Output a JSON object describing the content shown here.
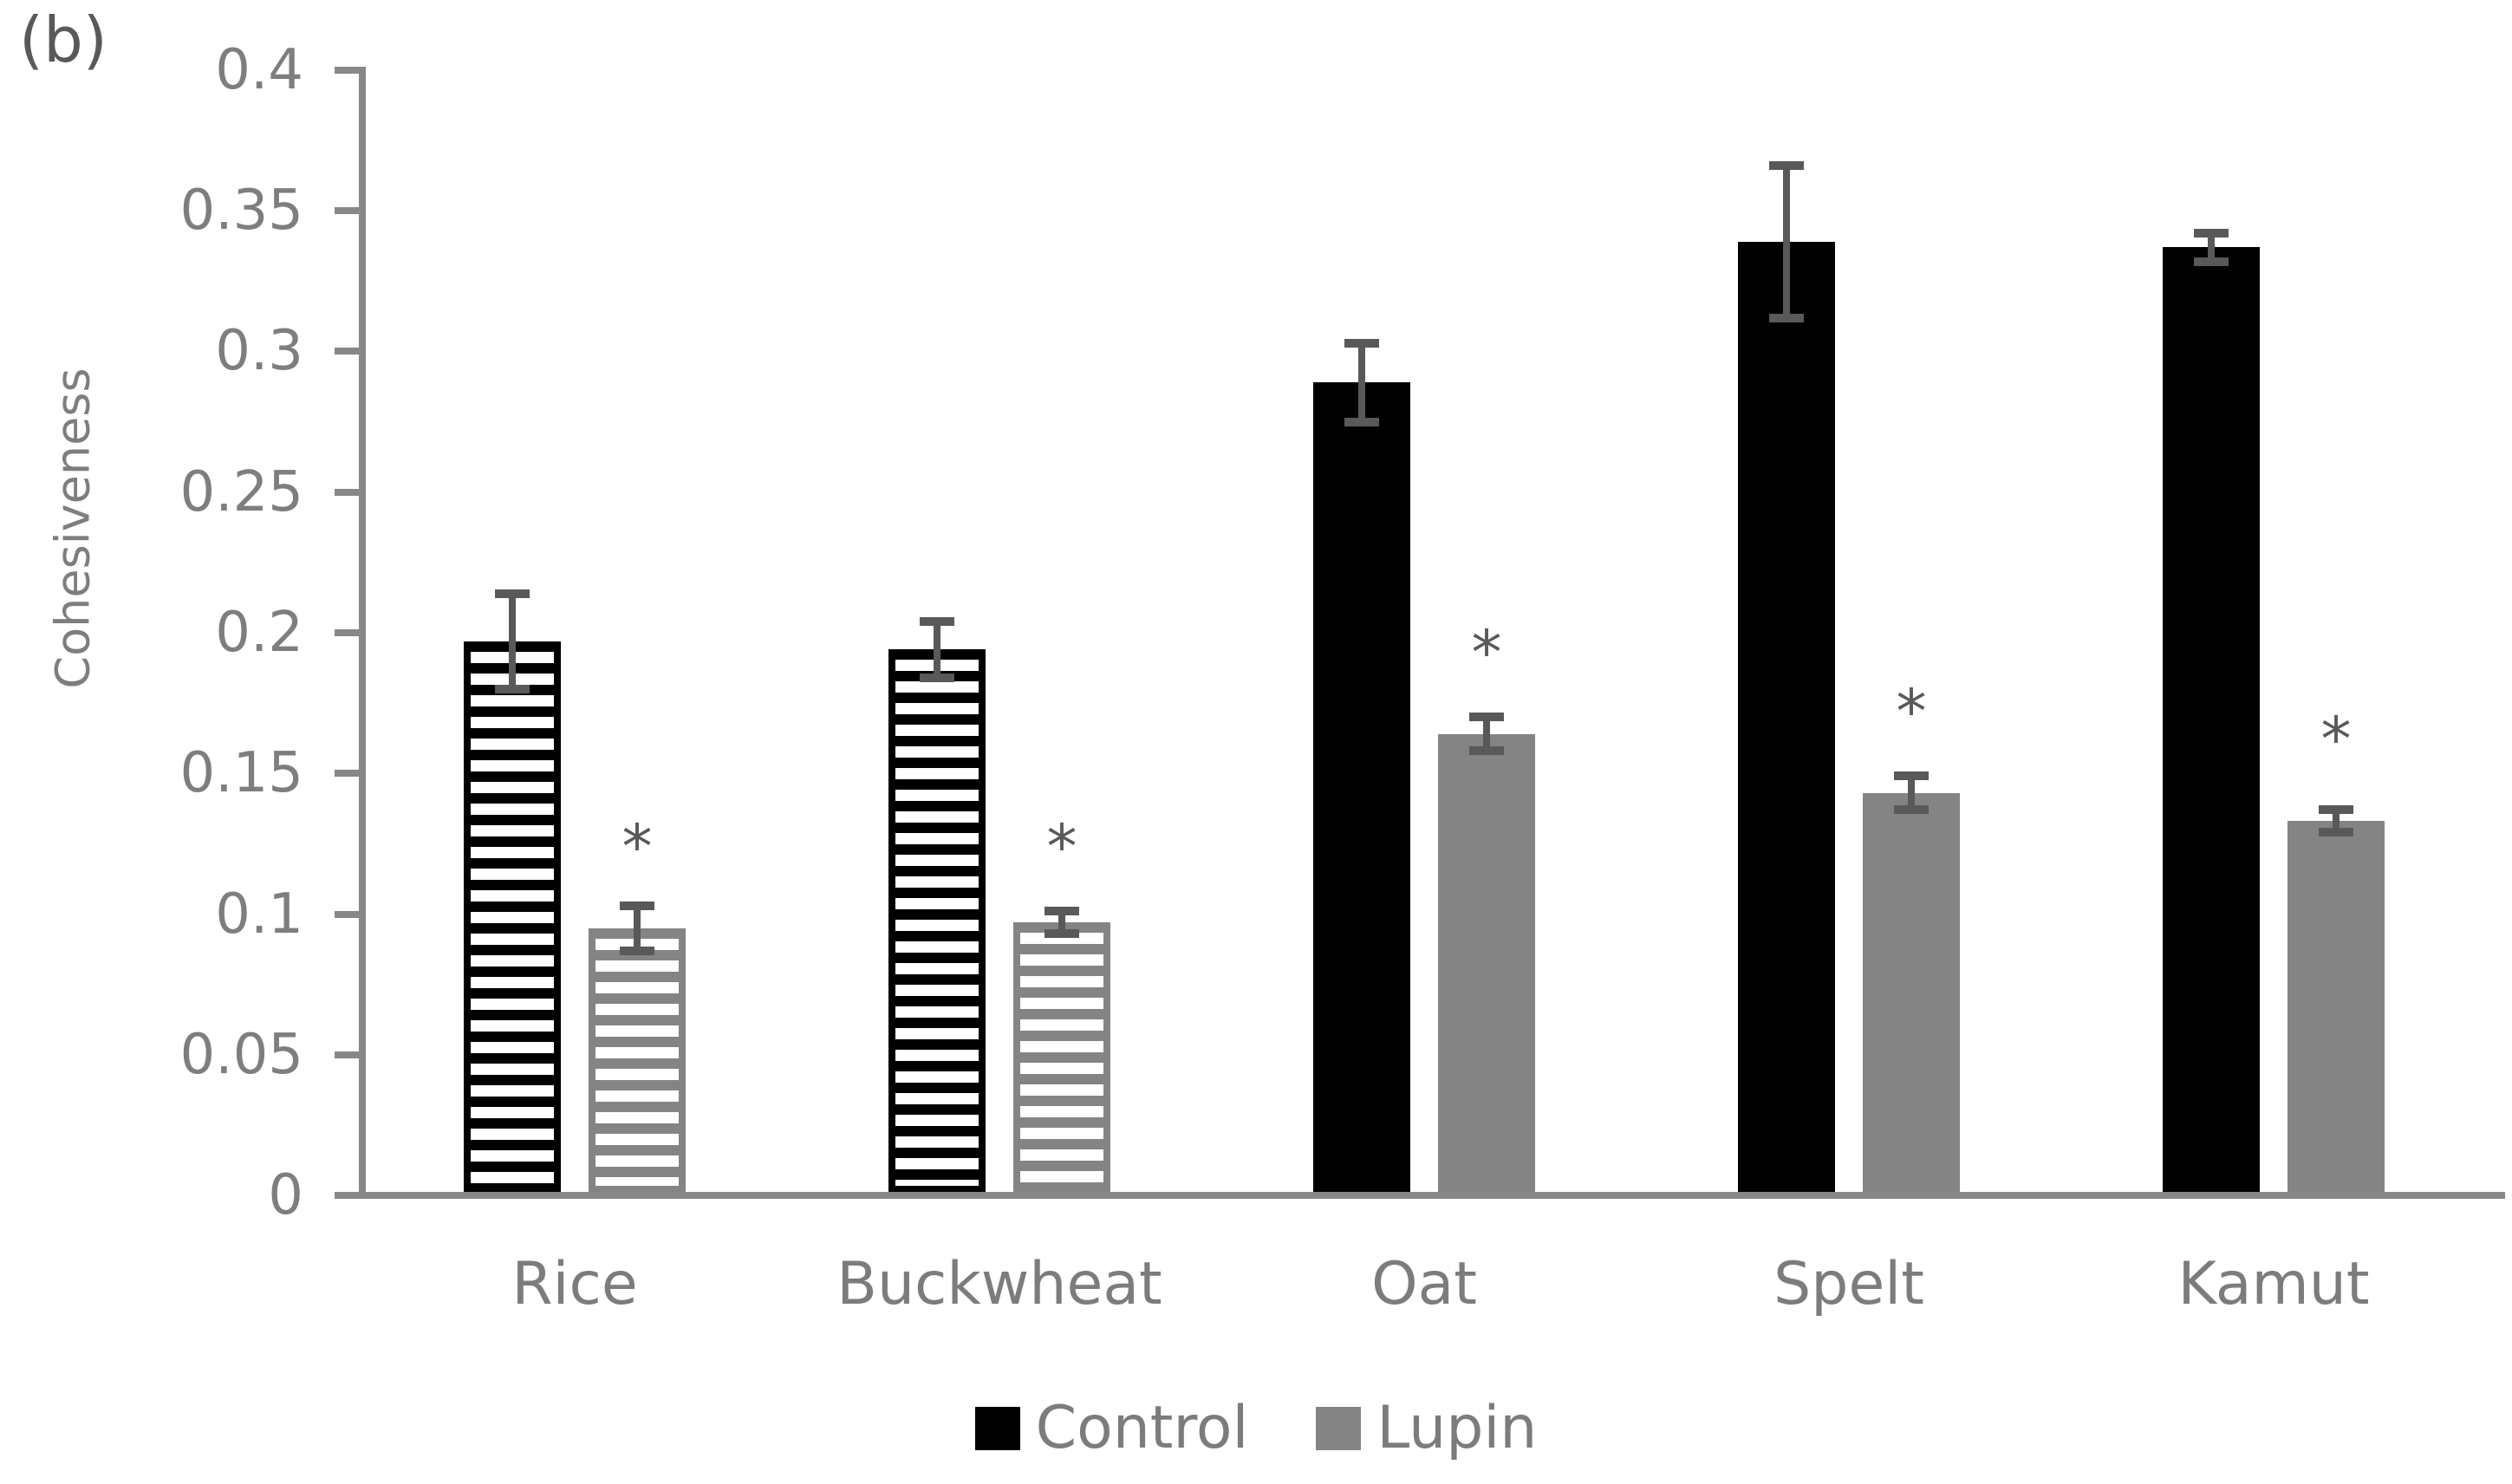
{
  "panel_label": "(b)",
  "ylabel": "Cohesiveness",
  "chart_data": {
    "type": "bar",
    "title": "",
    "xlabel": "",
    "categories": [
      "Rice",
      "Buckwheat",
      "Oat",
      "Spelt",
      "Kamut"
    ],
    "series": [
      {
        "name": "Control",
        "color": "#000000",
        "values": [
          0.197,
          0.194,
          0.289,
          0.339,
          0.337
        ],
        "errors": [
          0.017,
          0.01,
          0.014,
          0.027,
          0.005
        ]
      },
      {
        "name": "Lupin",
        "color": "#848484",
        "values": [
          0.095,
          0.097,
          0.164,
          0.143,
          0.133
        ],
        "errors": [
          0.008,
          0.004,
          0.006,
          0.006,
          0.004
        ]
      }
    ],
    "striped_mask": [
      true,
      true,
      false,
      false,
      false
    ],
    "pattern_note": "Rice and Buckwheat bars use horizontal white stripe fill",
    "significance": {
      "symbol": "*",
      "on_series": "Lupin",
      "marked_categories": [
        "Rice",
        "Buckwheat",
        "Oat",
        "Spelt",
        "Kamut"
      ],
      "y_positions": [
        0.128,
        0.128,
        0.197,
        0.176,
        0.166
      ]
    },
    "ylim": [
      0,
      0.4
    ],
    "ytick_step": 0.05,
    "ytick_labels": [
      "0",
      "0.05",
      "0.1",
      "0.15",
      "0.2",
      "0.25",
      "0.3",
      "0.35",
      "0.4"
    ],
    "grid": false,
    "legend_position": "bottom",
    "error_bar_color": "#595959",
    "axis_color": "#878787",
    "text_color": "#7c7c7c"
  }
}
